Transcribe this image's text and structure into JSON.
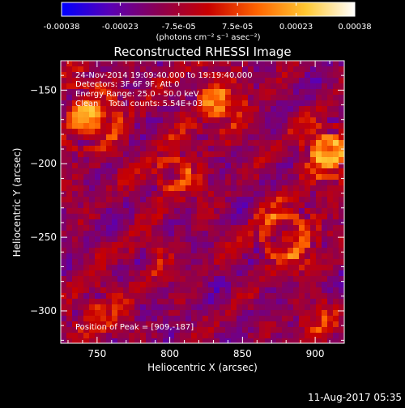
{
  "colorbar": {
    "ticks": [
      "-0.00038",
      "-0.00023",
      "-7.5e-05",
      "7.5e-05",
      "0.00023",
      "0.00038"
    ],
    "units_label": "(photons cm⁻² s⁻¹ asec⁻²)",
    "stops": [
      "#0000ff",
      "#5a00b4",
      "#8c0050",
      "#c80000",
      "#ff6400",
      "#ffc832",
      "#ffffff"
    ]
  },
  "chart_data": {
    "type": "heatmap",
    "title": "Reconstructed RHESSI Image",
    "xlabel": "Heliocentric X (arcsec)",
    "ylabel": "Heliocentric Y (arcsec)",
    "xlim": [
      725,
      920
    ],
    "ylim": [
      -322,
      -130
    ],
    "x_ticks": [
      750,
      800,
      850,
      900
    ],
    "y_ticks": [
      -150,
      -200,
      -250,
      -300
    ],
    "value_range": [
      -0.00038,
      0.00038
    ],
    "peak": [
      909,
      -187
    ],
    "annotations": [
      "24-Nov-2014 19:09:40.000 to 19:19:40.000",
      "Detectors: 3F 6F 9F, Att 0",
      "Energy Range: 25.0 - 50.0 keV",
      "Clean    Total counts: 5.54E+03"
    ],
    "peak_label": "Position of Peak = [909,-187]"
  },
  "footer": {
    "date": "11-Aug-2017 05:35"
  }
}
